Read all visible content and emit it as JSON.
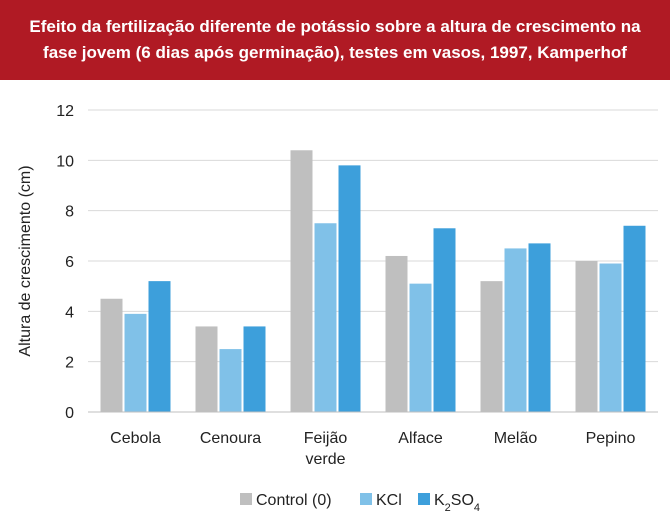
{
  "chart_data": {
    "type": "bar",
    "title": "Efeito da fertilização diferente de potássio sobre a altura de crescimento na fase jovem (6 dias após germinação), testes em vasos, 1997, Kamperhof",
    "ylabel": "Altura de crescimento (cm)",
    "xlabel": "",
    "ylim": [
      0,
      12
    ],
    "yticks": [
      0,
      2,
      4,
      6,
      8,
      10,
      12
    ],
    "grid": true,
    "legend_position": "bottom",
    "categories": [
      [
        "Cebola"
      ],
      [
        "Cenoura"
      ],
      [
        "Feijão",
        "verde"
      ],
      [
        "Alface"
      ],
      [
        "Melão"
      ],
      [
        "Pepino"
      ]
    ],
    "series": [
      {
        "name": "Control (0)",
        "color": "#bfbfbf",
        "values": [
          4.5,
          3.4,
          10.4,
          6.2,
          5.2,
          6.0
        ]
      },
      {
        "name": "KCl",
        "color": "#80c1e8",
        "values": [
          3.9,
          2.5,
          7.5,
          5.1,
          6.5,
          5.9
        ]
      },
      {
        "name": "K2SO4",
        "color": "#3d9fdb",
        "values": [
          5.2,
          3.4,
          9.8,
          7.3,
          6.7,
          7.4
        ]
      }
    ]
  }
}
